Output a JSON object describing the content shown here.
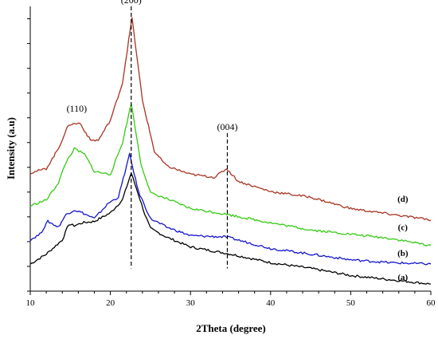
{
  "chart_data": {
    "type": "line",
    "title": "",
    "xlabel": "2Theta (degree)",
    "ylabel": "Intensity (a.u)",
    "xlim": [
      10,
      60
    ],
    "xticks": [
      10,
      20,
      30,
      40,
      50,
      60
    ],
    "yticks_labeled": false,
    "grid": false,
    "legend": "none",
    "annotations": [
      {
        "text": "(200)",
        "x": 22.6,
        "line_from": 0.08,
        "line_to": 1.0,
        "style": "dashed"
      },
      {
        "text": "(110)",
        "x": 15.8,
        "line_from": null,
        "line_to": null,
        "style": "none"
      },
      {
        "text": "(004)",
        "x": 34.6,
        "line_from": 0.08,
        "line_to": 0.555,
        "style": "dashed"
      }
    ],
    "series": [
      {
        "label": "(a)",
        "color": "#000000",
        "x": [
          10,
          12,
          14,
          14.8,
          15.5,
          16.5,
          18,
          20,
          21.5,
          22.6,
          23.5,
          24.3,
          25,
          27,
          30,
          35,
          40,
          45,
          50,
          55,
          60
        ],
        "y": [
          0.095,
          0.13,
          0.18,
          0.235,
          0.23,
          0.24,
          0.245,
          0.275,
          0.32,
          0.415,
          0.34,
          0.27,
          0.22,
          0.19,
          0.155,
          0.13,
          0.1,
          0.08,
          0.055,
          0.04,
          0.025
        ]
      },
      {
        "label": "(b)",
        "color": "#1414cc",
        "x": [
          10,
          11.2,
          12.2,
          13.5,
          14.5,
          15.5,
          16.5,
          18,
          19.8,
          21,
          22.4,
          23.5,
          25,
          27,
          30,
          34.5,
          40,
          45,
          50,
          55,
          60
        ],
        "y": [
          0.18,
          0.2,
          0.245,
          0.225,
          0.27,
          0.285,
          0.275,
          0.255,
          0.31,
          0.33,
          0.48,
          0.35,
          0.255,
          0.225,
          0.195,
          0.19,
          0.15,
          0.13,
          0.11,
          0.1,
          0.095
        ]
      },
      {
        "label": "(c)",
        "color": "#33cc11",
        "x": [
          10,
          12,
          13.5,
          14.5,
          15.5,
          16.8,
          18,
          20,
          21.5,
          22.6,
          23.8,
          25,
          27,
          30,
          34.5,
          40,
          45,
          50,
          55,
          60
        ],
        "y": [
          0.3,
          0.32,
          0.38,
          0.455,
          0.5,
          0.48,
          0.42,
          0.41,
          0.52,
          0.66,
          0.45,
          0.345,
          0.325,
          0.29,
          0.27,
          0.24,
          0.215,
          0.2,
          0.185,
          0.16
        ]
      },
      {
        "label": "(d)",
        "color": "#a83222",
        "x": [
          10,
          12,
          13.5,
          14.8,
          16.2,
          17.5,
          18.5,
          20,
          21.5,
          22.7,
          24,
          25.5,
          27,
          30,
          33,
          34.5,
          36,
          40,
          45,
          50,
          55,
          60
        ],
        "y": [
          0.415,
          0.43,
          0.5,
          0.585,
          0.59,
          0.53,
          0.53,
          0.6,
          0.73,
          0.96,
          0.67,
          0.49,
          0.44,
          0.41,
          0.4,
          0.43,
          0.385,
          0.35,
          0.33,
          0.29,
          0.27,
          0.25
        ]
      }
    ],
    "series_label_positions": [
      {
        "label": "(a)",
        "x": 56.5,
        "y": 0.05
      },
      {
        "label": "(b)",
        "x": 56.5,
        "y": 0.135
      },
      {
        "label": "(c)",
        "x": 56.5,
        "y": 0.225
      },
      {
        "label": "(d)",
        "x": 56.5,
        "y": 0.325
      }
    ]
  }
}
